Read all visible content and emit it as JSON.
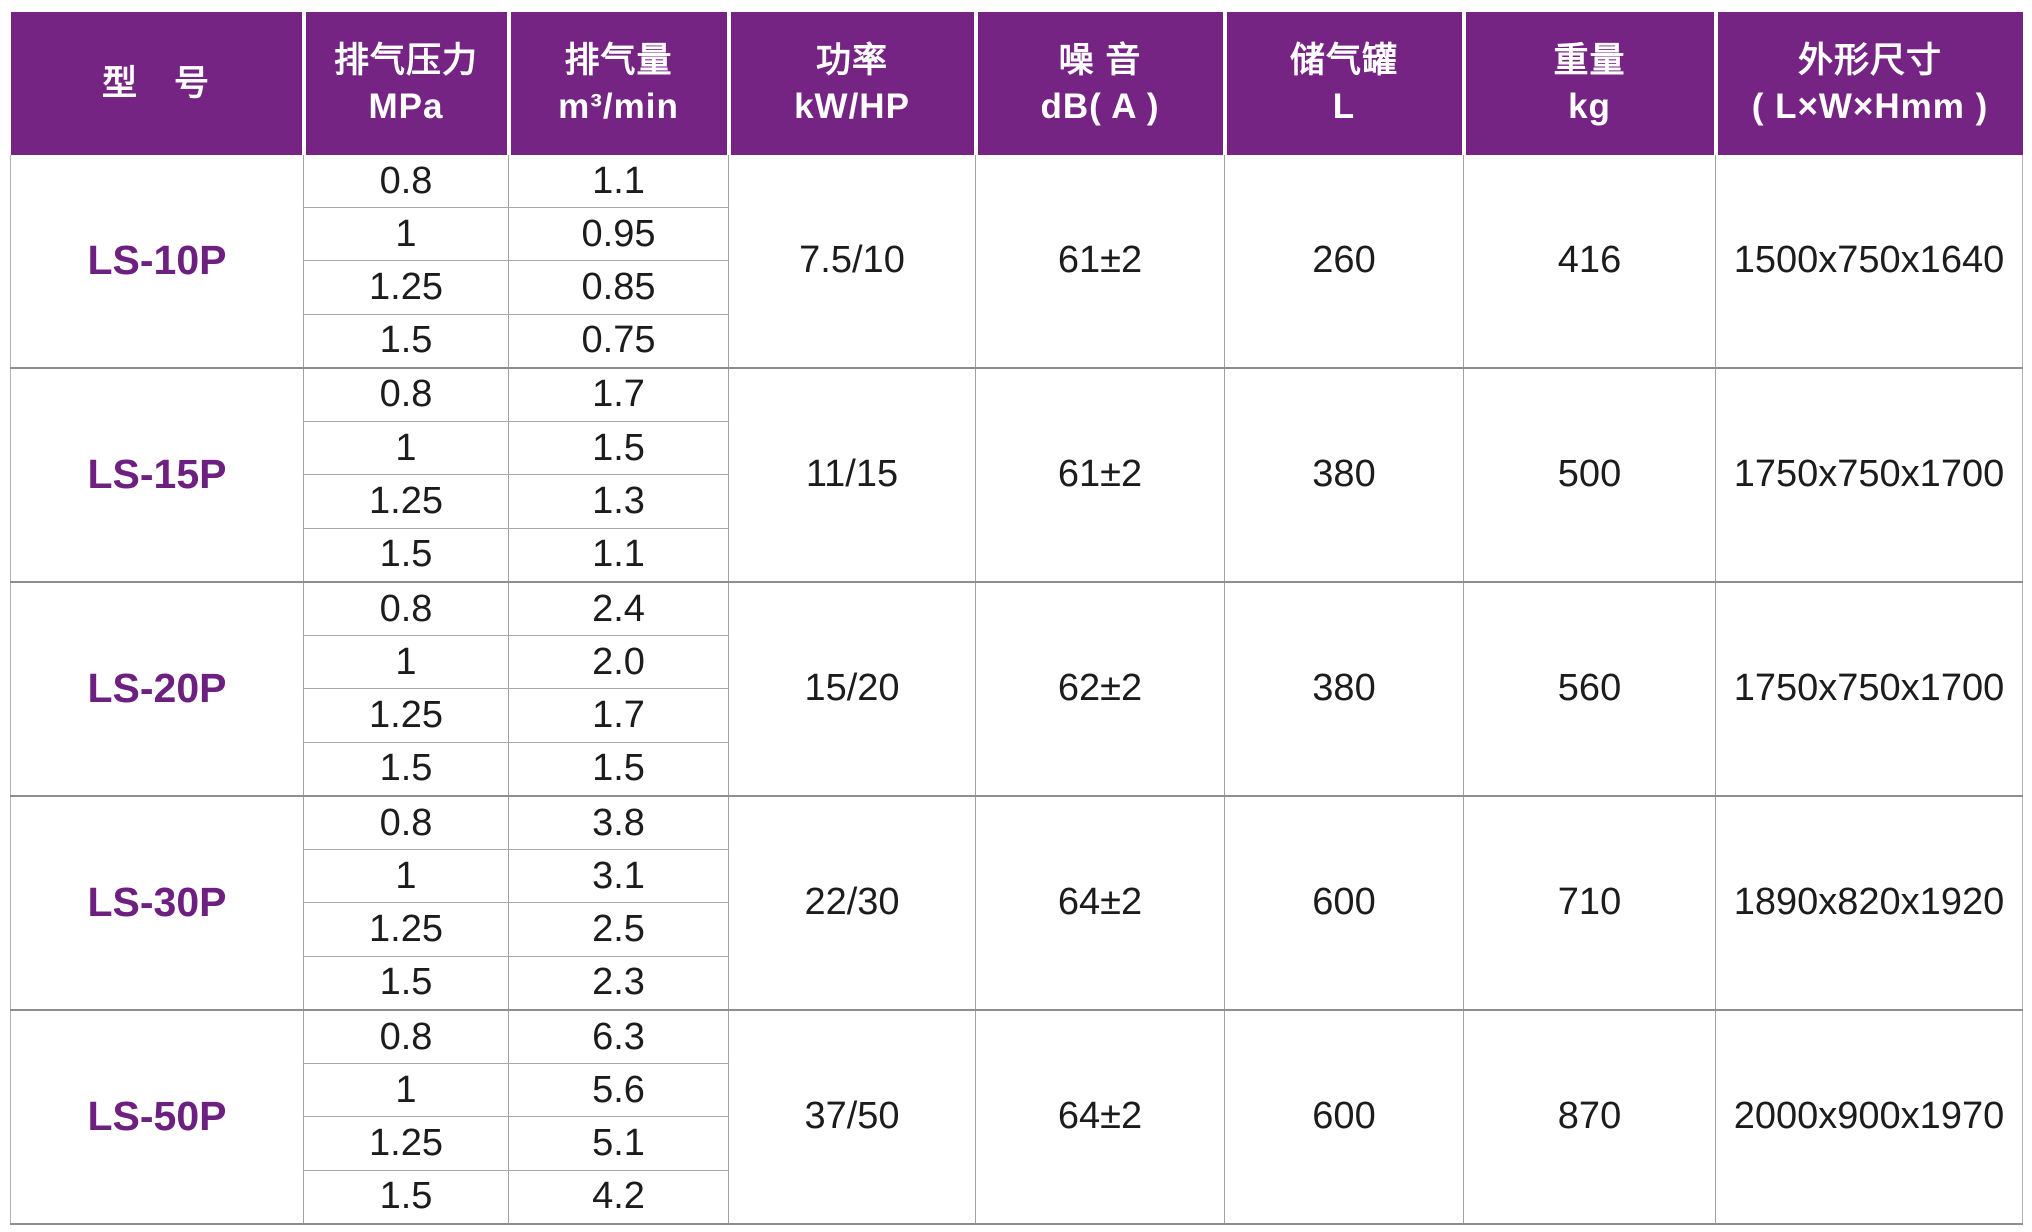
{
  "colors": {
    "header_bg": "#762484",
    "header_text": "#ffffff",
    "model_text": "#6e2080",
    "grid_line": "#a2a2a2",
    "block_line": "#8e8e8e",
    "body_text": "#1c1c1c"
  },
  "table": {
    "header": {
      "columns": [
        {
          "line1": "型　号",
          "line2": ""
        },
        {
          "line1": "排气压力",
          "line2": "MPa"
        },
        {
          "line1": "排气量",
          "line2": "m³/min"
        },
        {
          "line1": "功率",
          "line2": "kW/HP"
        },
        {
          "line1": "噪 音",
          "line2": "dB( A )"
        },
        {
          "line1": "储气罐",
          "line2": "L"
        },
        {
          "line1": "重量",
          "line2": "kg"
        },
        {
          "line1": "外形尺寸",
          "line2": "( L×W×Hmm )"
        }
      ]
    },
    "models": [
      {
        "name": "LS-10P",
        "pressure": [
          "0.8",
          "1",
          "1.25",
          "1.5"
        ],
        "volume": [
          "1.1",
          "0.95",
          "0.85",
          "0.75"
        ],
        "power": "7.5/10",
        "noise": "61±2",
        "tank": "260",
        "weight": "416",
        "dims": "1500x750x1640"
      },
      {
        "name": "LS-15P",
        "pressure": [
          "0.8",
          "1",
          "1.25",
          "1.5"
        ],
        "volume": [
          "1.7",
          "1.5",
          "1.3",
          "1.1"
        ],
        "power": "11/15",
        "noise": "61±2",
        "tank": "380",
        "weight": "500",
        "dims": "1750x750x1700"
      },
      {
        "name": "LS-20P",
        "pressure": [
          "0.8",
          "1",
          "1.25",
          "1.5"
        ],
        "volume": [
          "2.4",
          "2.0",
          "1.7",
          "1.5"
        ],
        "power": "15/20",
        "noise": "62±2",
        "tank": "380",
        "weight": "560",
        "dims": "1750x750x1700"
      },
      {
        "name": "LS-30P",
        "pressure": [
          "0.8",
          "1",
          "1.25",
          "1.5"
        ],
        "volume": [
          "3.8",
          "3.1",
          "2.5",
          "2.3"
        ],
        "power": "22/30",
        "noise": "64±2",
        "tank": "600",
        "weight": "710",
        "dims": "1890x820x1920"
      },
      {
        "name": "LS-50P",
        "pressure": [
          "0.8",
          "1",
          "1.25",
          "1.5"
        ],
        "volume": [
          "6.3",
          "5.6",
          "5.1",
          "4.2"
        ],
        "power": "37/50",
        "noise": "64±2",
        "tank": "600",
        "weight": "870",
        "dims": "2000x900x1970"
      }
    ]
  }
}
